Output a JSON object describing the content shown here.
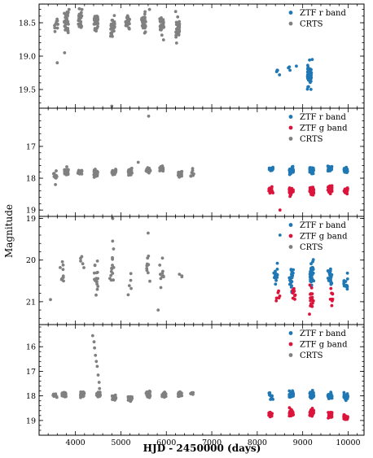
{
  "chart_data": {
    "type": "scatter",
    "xlabel": "HJD - 2450000 (days)",
    "ylabel": "Magnitude",
    "xlim": [
      3200,
      10350
    ],
    "x_ticks": [
      4000,
      5000,
      6000,
      7000,
      8000,
      9000,
      10000
    ],
    "legend_placement": "top-right",
    "colors": {
      "ZTF r band": "#1f77b4",
      "ZTF g band": "#dc143c",
      "CRTS": "#808080"
    },
    "panels": [
      {
        "ylim": [
          19.78,
          18.22
        ],
        "y_ticks": [
          18.5,
          19.0,
          19.5
        ],
        "y_tick_labels": [
          "18.5",
          "19.0",
          "19.5"
        ],
        "legend": [
          "ZTF r band",
          "CRTS"
        ],
        "series": [
          {
            "name": "CRTS",
            "clusters": [
              [
                3570,
                18.55,
                0.12,
                10
              ],
              [
                3800,
                18.52,
                0.18,
                35
              ],
              [
                4100,
                18.45,
                0.12,
                30
              ],
              [
                4450,
                18.5,
                0.12,
                30
              ],
              [
                4820,
                18.55,
                0.13,
                30
              ],
              [
                5150,
                18.5,
                0.1,
                25
              ],
              [
                5500,
                18.5,
                0.13,
                30
              ],
              [
                5900,
                18.55,
                0.13,
                30
              ],
              [
                6250,
                18.6,
                0.14,
                30
              ]
            ],
            "outliers": [
              [
                3600,
                19.1
              ],
              [
                3760,
                18.95
              ],
              [
                3860,
                18.3
              ],
              [
                4800,
                19.75
              ],
              [
                5630,
                18.3
              ]
            ]
          },
          {
            "name": "ZTF r band",
            "clusters": [
              [
                8430,
                19.2,
                0.06,
                4
              ],
              [
                8700,
                19.17,
                0.04,
                3
              ],
              [
                9150,
                19.27,
                0.15,
                45
              ]
            ],
            "outliers": [
              [
                8490,
                19.28
              ],
              [
                8860,
                19.15
              ],
              [
                9210,
                19.05
              ]
            ]
          }
        ]
      },
      {
        "ylim": [
          19.2,
          15.8
        ],
        "y_ticks": [
          17,
          18,
          19
        ],
        "y_tick_labels": [
          "17",
          "18",
          "19"
        ],
        "legend": [
          "ZTF r band",
          "ZTF g band",
          "CRTS"
        ],
        "series": [
          {
            "name": "CRTS",
            "clusters": [
              [
                3550,
                17.9,
                0.1,
                12
              ],
              [
                3800,
                17.8,
                0.1,
                30
              ],
              [
                4100,
                17.8,
                0.08,
                20
              ],
              [
                4450,
                17.85,
                0.1,
                30
              ],
              [
                4850,
                17.8,
                0.07,
                25
              ],
              [
                5200,
                17.8,
                0.08,
                25
              ],
              [
                5600,
                17.75,
                0.08,
                30
              ],
              [
                5900,
                17.7,
                0.1,
                25
              ],
              [
                6300,
                17.85,
                0.1,
                20
              ],
              [
                6570,
                17.85,
                0.1,
                8
              ]
            ],
            "outliers": [
              [
                3560,
                18.2
              ],
              [
                5380,
                17.5
              ],
              [
                5610,
                16.05
              ]
            ]
          },
          {
            "name": "ZTF r band",
            "clusters": [
              [
                8300,
                17.7,
                0.08,
                14
              ],
              [
                8750,
                17.75,
                0.08,
                40
              ],
              [
                9200,
                17.75,
                0.08,
                45
              ],
              [
                9600,
                17.7,
                0.08,
                35
              ],
              [
                9950,
                17.75,
                0.08,
                20
              ]
            ],
            "outliers": []
          },
          {
            "name": "ZTF g band",
            "clusters": [
              [
                8300,
                18.4,
                0.1,
                14
              ],
              [
                8750,
                18.4,
                0.1,
                40
              ],
              [
                9200,
                18.4,
                0.1,
                45
              ],
              [
                9600,
                18.35,
                0.1,
                35
              ],
              [
                9950,
                18.4,
                0.1,
                20
              ]
            ],
            "outliers": [
              [
                8500,
                19.0
              ]
            ]
          }
        ]
      },
      {
        "ylim": [
          21.55,
          18.95
        ],
        "y_ticks": [
          19,
          20,
          21
        ],
        "y_tick_labels": [
          "19",
          "20",
          "21"
        ],
        "legend": [
          "ZTF r band",
          "ZTF g band",
          "CRTS"
        ],
        "series": [
          {
            "name": "CRTS",
            "clusters": [
              [
                3700,
                20.3,
                0.4,
                10
              ],
              [
                4150,
                20.1,
                0.35,
                5
              ],
              [
                4450,
                20.45,
                0.45,
                18
              ],
              [
                4800,
                20.25,
                0.45,
                14
              ],
              [
                5200,
                20.55,
                0.35,
                5
              ],
              [
                5600,
                20.2,
                0.4,
                10
              ],
              [
                5900,
                20.3,
                0.35,
                10
              ],
              [
                6300,
                20.4,
                0.2,
                3
              ]
            ],
            "outliers": [
              [
                3450,
                20.95
              ],
              [
                4820,
                19.0
              ],
              [
                5600,
                19.35
              ],
              [
                5820,
                21.2
              ]
            ]
          },
          {
            "name": "ZTF r band",
            "clusters": [
              [
                8400,
                20.35,
                0.25,
                15
              ],
              [
                8750,
                20.45,
                0.25,
                25
              ],
              [
                9200,
                20.35,
                0.25,
                35
              ],
              [
                9600,
                20.4,
                0.25,
                25
              ],
              [
                9950,
                20.45,
                0.25,
                15
              ]
            ],
            "outliers": [
              [
                8500,
                19.4
              ]
            ]
          },
          {
            "name": "ZTF g band",
            "clusters": [
              [
                8450,
                20.85,
                0.15,
                6
              ],
              [
                8800,
                20.75,
                0.2,
                10
              ],
              [
                9200,
                20.85,
                0.25,
                18
              ],
              [
                9650,
                20.85,
                0.2,
                10
              ]
            ],
            "outliers": [
              [
                9150,
                21.3
              ]
            ]
          }
        ]
      },
      {
        "ylim": [
          19.6,
          15.1
        ],
        "y_ticks": [
          16,
          17,
          18,
          19
        ],
        "y_tick_labels": [
          "16",
          "17",
          "18",
          "19"
        ],
        "legend": [
          "ZTF r band",
          "ZTF g band",
          "CRTS"
        ],
        "series": [
          {
            "name": "CRTS",
            "clusters": [
              [
                3550,
                18.0,
                0.1,
                12
              ],
              [
                3750,
                17.95,
                0.1,
                30
              ],
              [
                4150,
                17.95,
                0.1,
                30
              ],
              [
                4500,
                17.95,
                0.1,
                20
              ],
              [
                4850,
                18.05,
                0.1,
                25
              ],
              [
                5200,
                18.1,
                0.1,
                25
              ],
              [
                5600,
                17.95,
                0.1,
                30
              ],
              [
                5950,
                17.95,
                0.1,
                25
              ],
              [
                6300,
                17.95,
                0.1,
                15
              ],
              [
                6570,
                17.9,
                0.08,
                6
              ]
            ],
            "outliers": [
              [
                4380,
                15.55
              ],
              [
                4410,
                15.8
              ],
              [
                4420,
                16.05
              ],
              [
                4440,
                16.35
              ],
              [
                4460,
                16.6
              ],
              [
                4480,
                16.8
              ],
              [
                4500,
                17.15
              ],
              [
                4520,
                17.45
              ],
              [
                4530,
                17.7
              ],
              [
                4540,
                17.85
              ]
            ]
          },
          {
            "name": "ZTF r band",
            "clusters": [
              [
                8300,
                18.0,
                0.12,
                14
              ],
              [
                8750,
                17.95,
                0.12,
                35
              ],
              [
                9200,
                17.95,
                0.12,
                40
              ],
              [
                9600,
                18.0,
                0.12,
                30
              ],
              [
                9950,
                18.05,
                0.12,
                20
              ]
            ],
            "outliers": []
          },
          {
            "name": "ZTF g band",
            "clusters": [
              [
                8300,
                18.75,
                0.12,
                14
              ],
              [
                8750,
                18.7,
                0.12,
                35
              ],
              [
                9200,
                18.7,
                0.12,
                40
              ],
              [
                9600,
                18.75,
                0.12,
                30
              ],
              [
                9950,
                18.85,
                0.12,
                20
              ]
            ],
            "outliers": []
          }
        ]
      }
    ]
  }
}
